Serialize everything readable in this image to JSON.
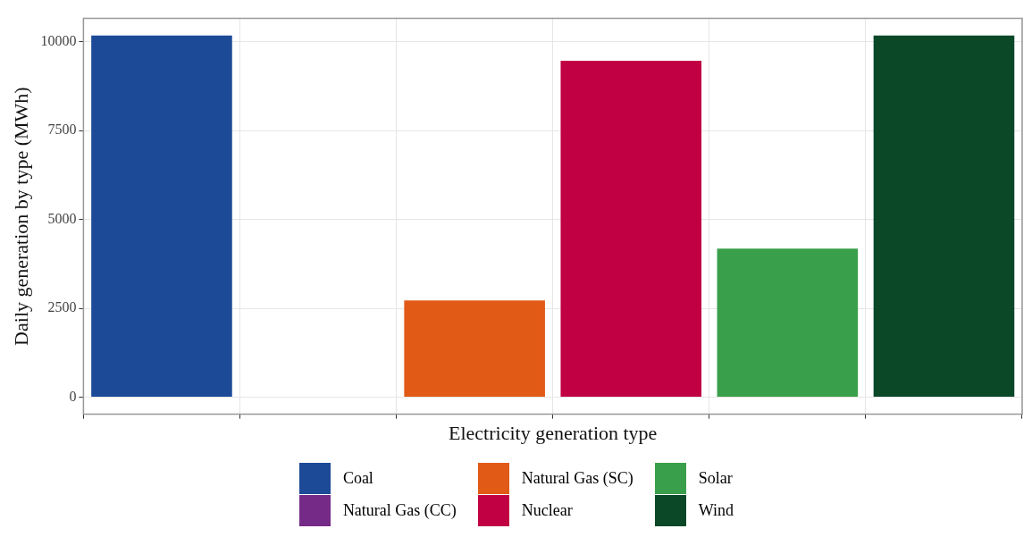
{
  "chart_data": {
    "type": "bar",
    "xlabel": "Electricity generation type",
    "ylabel": "Daily generation by type (MWh)",
    "categories": [
      null,
      null,
      null,
      null,
      null,
      null
    ],
    "series": [
      {
        "name": "Coal",
        "color": "#1c4a97",
        "values": [
          10180,
          null,
          null,
          null,
          null,
          null
        ]
      },
      {
        "name": "Natural Gas (CC)",
        "color": "#762a88",
        "values": [
          null,
          0,
          null,
          null,
          null,
          null
        ]
      },
      {
        "name": "Natural Gas (SC)",
        "color": "#e15a16",
        "values": [
          null,
          null,
          2720,
          null,
          null,
          null
        ]
      },
      {
        "name": "Nuclear",
        "color": "#c10044",
        "values": [
          null,
          null,
          null,
          9470,
          null,
          null
        ]
      },
      {
        "name": "Solar",
        "color": "#3a9f4b",
        "values": [
          null,
          null,
          null,
          null,
          4180,
          null
        ]
      },
      {
        "name": "Wind",
        "color": "#0b4828",
        "values": [
          null,
          null,
          null,
          null,
          null,
          10180
        ]
      }
    ],
    "ylim": [
      -480,
      10660
    ],
    "yticks": [
      0,
      2500,
      5000,
      7500,
      10000
    ],
    "grid": true,
    "legend": "bottom",
    "tick_labels": "y"
  }
}
